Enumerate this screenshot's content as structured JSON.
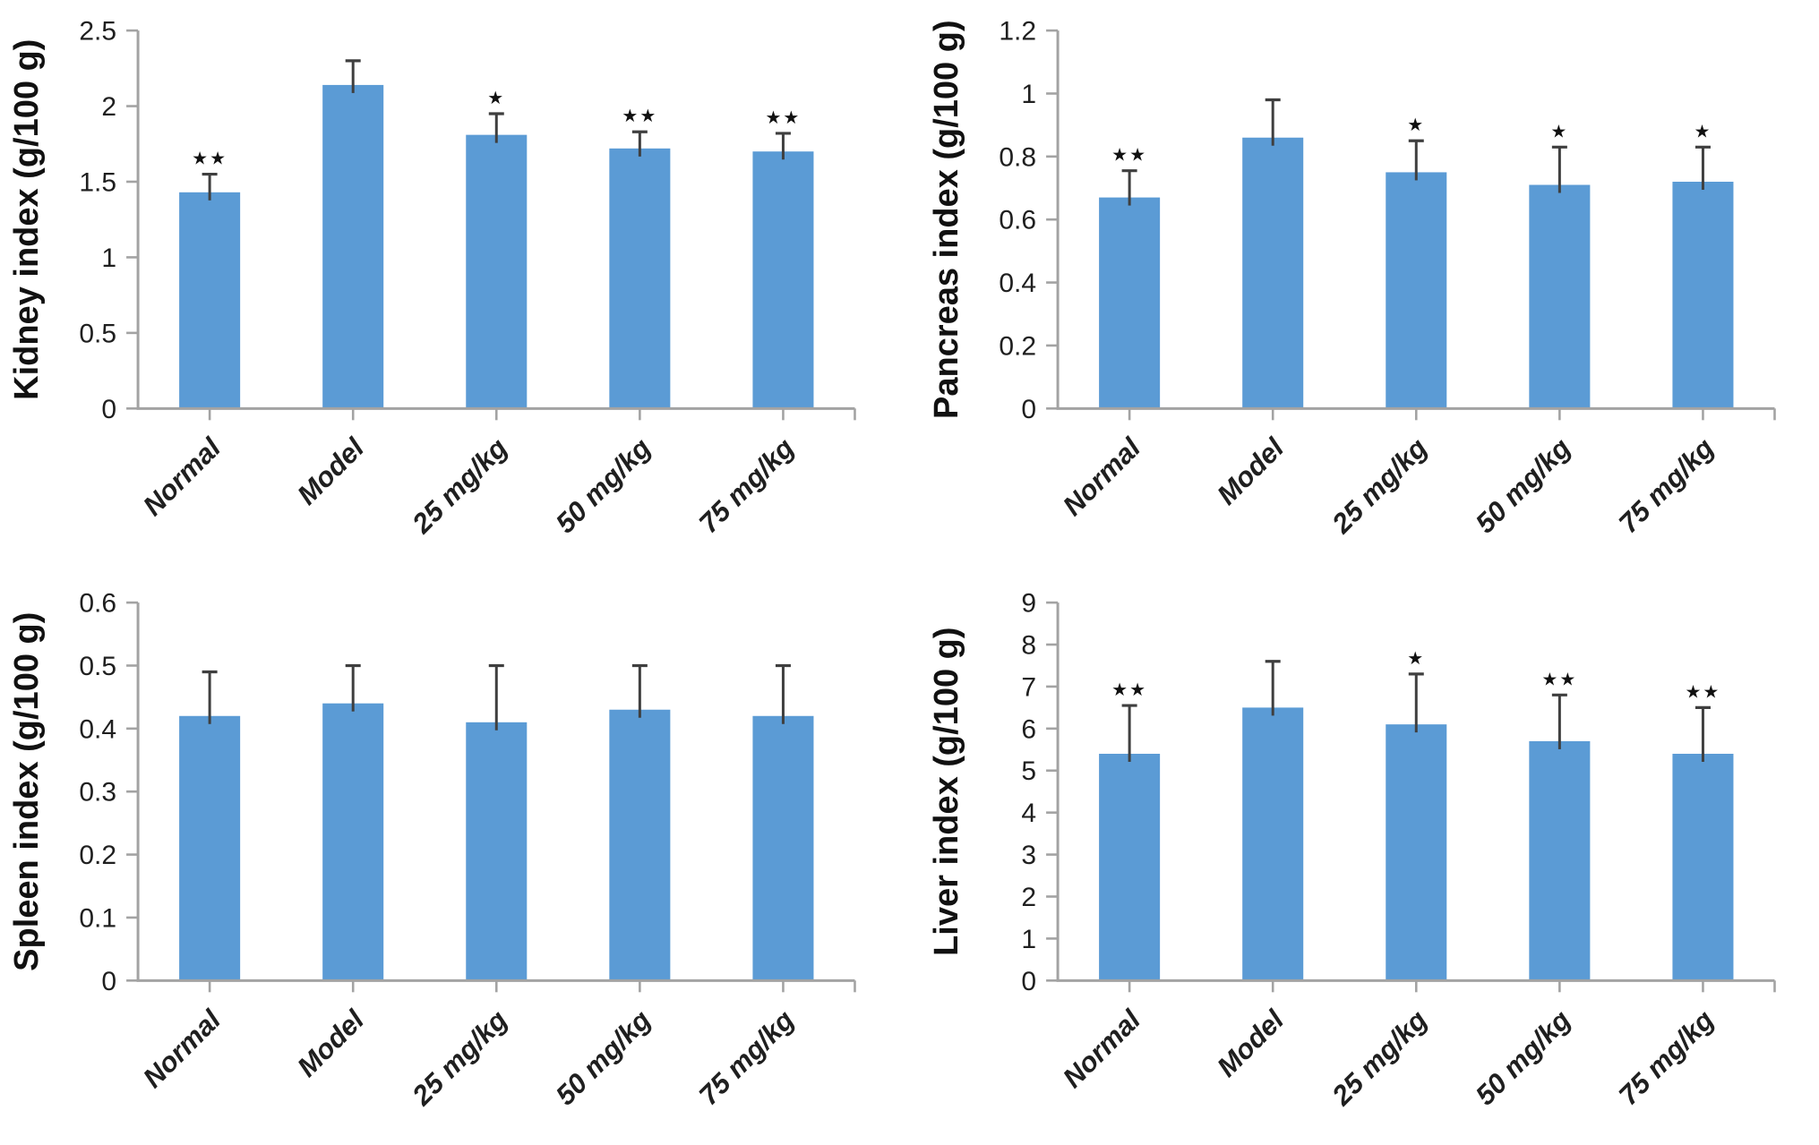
{
  "figure": {
    "description": "Organ index bar charts, four panels",
    "background": "#ffffff"
  },
  "style": {
    "bar_color": "#5B9BD5",
    "axis_color": "#a3a3a3",
    "error_bar_color": "#3f3f3f",
    "tick_text_color": "#1f1f1f",
    "category_text_color": "#1f1f1f",
    "axis_title_color": "#111111",
    "significance_color": "#111111"
  },
  "chart_data": [
    {
      "type": "bar",
      "panel": "top-left",
      "title": "",
      "xlabel": "",
      "ylabel": "Kidney index (g/100 g)",
      "categories": [
        "Normal",
        "Model",
        "25 mg/kg",
        "50 mg/kg",
        "75 mg/kg"
      ],
      "values": [
        1.43,
        2.14,
        1.81,
        1.72,
        1.7
      ],
      "errors_plus": [
        0.12,
        0.16,
        0.14,
        0.11,
        0.12
      ],
      "significance": [
        "**",
        "",
        "*",
        "**",
        "**"
      ],
      "ylim": [
        0,
        2.5
      ],
      "yticks": [
        0,
        0.5,
        1,
        1.5,
        2,
        2.5
      ],
      "ytick_labels": [
        "0",
        "0.5",
        "1",
        "1.5",
        "2",
        "2.5"
      ],
      "grid": false,
      "legend": "none"
    },
    {
      "type": "bar",
      "panel": "top-right",
      "title": "",
      "xlabel": "",
      "ylabel": "Pancreas index (g/100 g)",
      "categories": [
        "Normal",
        "Model",
        "25 mg/kg",
        "50 mg/kg",
        "75 mg/kg"
      ],
      "values": [
        0.67,
        0.86,
        0.75,
        0.71,
        0.72
      ],
      "errors_plus": [
        0.085,
        0.12,
        0.1,
        0.12,
        0.11
      ],
      "significance": [
        "**",
        "",
        "*",
        "*",
        "*"
      ],
      "ylim": [
        0,
        1.2
      ],
      "yticks": [
        0,
        0.2,
        0.4,
        0.6,
        0.8,
        1,
        1.2
      ],
      "ytick_labels": [
        "0",
        "0.2",
        "0.4",
        "0.6",
        "0.8",
        "1",
        "1.2"
      ],
      "grid": false,
      "legend": "none"
    },
    {
      "type": "bar",
      "panel": "bottom-left",
      "title": "",
      "xlabel": "",
      "ylabel": "Spleen index (g/100 g)",
      "categories": [
        "Normal",
        "Model",
        "25 mg/kg",
        "50 mg/kg",
        "75 mg/kg"
      ],
      "values": [
        0.42,
        0.44,
        0.41,
        0.43,
        0.42
      ],
      "errors_plus": [
        0.07,
        0.06,
        0.09,
        0.07,
        0.08
      ],
      "significance": [
        "",
        "",
        "",
        "",
        ""
      ],
      "ylim": [
        0,
        0.6
      ],
      "yticks": [
        0,
        0.1,
        0.2,
        0.3,
        0.4,
        0.5,
        0.6
      ],
      "ytick_labels": [
        "0",
        "0.1",
        "0.2",
        "0.3",
        "0.4",
        "0.5",
        "0.6"
      ],
      "grid": false,
      "legend": "none"
    },
    {
      "type": "bar",
      "panel": "bottom-right",
      "title": "",
      "xlabel": "",
      "ylabel": "Liver index (g/100 g)",
      "categories": [
        "Normal",
        "Model",
        "25 mg/kg",
        "50 mg/kg",
        "75 mg/kg"
      ],
      "values": [
        5.4,
        6.5,
        6.1,
        5.7,
        5.4
      ],
      "errors_plus": [
        1.15,
        1.1,
        1.2,
        1.1,
        1.1
      ],
      "significance": [
        "**",
        "",
        "*",
        "**",
        "**"
      ],
      "ylim": [
        0,
        9
      ],
      "yticks": [
        0,
        1,
        2,
        3,
        4,
        5,
        6,
        7,
        8,
        9
      ],
      "ytick_labels": [
        "0",
        "1",
        "2",
        "3",
        "4",
        "5",
        "6",
        "7",
        "8",
        "9"
      ],
      "grid": false,
      "legend": "none"
    }
  ]
}
